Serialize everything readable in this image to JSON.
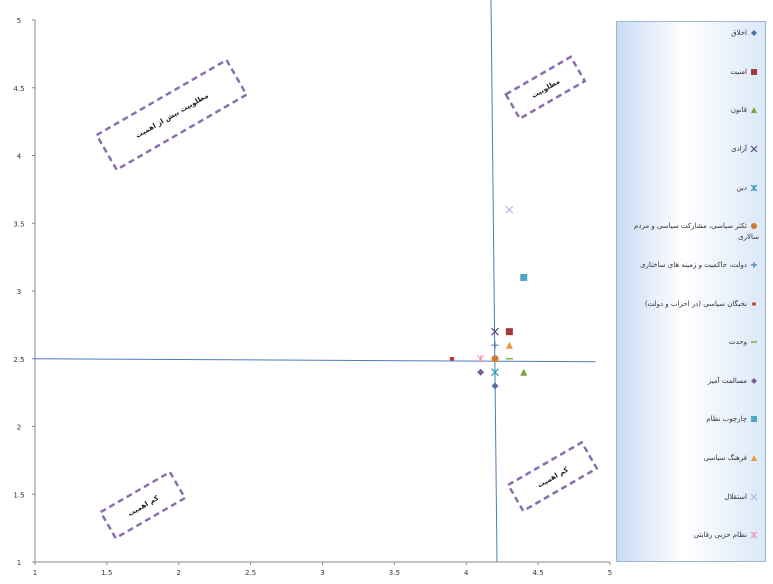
{
  "chart_data": {
    "type": "scatter",
    "xlim": [
      1,
      5
    ],
    "ylim": [
      1,
      5
    ],
    "x_ticks": [
      "1",
      "1.5",
      "2",
      "2.5",
      "3",
      "3.5",
      "4",
      "4.5",
      "5"
    ],
    "y_ticks": [
      "1",
      "1.5",
      "2",
      "2.5",
      "3",
      "3.5",
      "4",
      "4.5",
      "5"
    ],
    "grid": false,
    "legend_position": "right",
    "reference_lines": {
      "x": 4.2,
      "y": 2.5,
      "color": "#4a7ebb"
    },
    "quadrant_labels": [
      {
        "text": "مطلوبیت بیش از اهمیت",
        "x": 1.95,
        "y": 4.3
      },
      {
        "text": "مطلوبیت",
        "x": 4.55,
        "y": 4.5
      },
      {
        "text": "کم اهمیت",
        "x": 1.75,
        "y": 1.42
      },
      {
        "text": "کم اهمیت",
        "x": 4.6,
        "y": 1.63
      }
    ],
    "series": [
      {
        "name": "اخلاق",
        "marker": "diamond",
        "color": "#4f6fa8",
        "x": 4.2,
        "y": 2.3
      },
      {
        "name": "امنیت",
        "marker": "square",
        "color": "#a33a3a",
        "x": 4.3,
        "y": 2.7
      },
      {
        "name": "قانون",
        "marker": "triangle",
        "color": "#7f9f3f",
        "x": 4.4,
        "y": 2.4
      },
      {
        "name": "آزادی",
        "marker": "x",
        "color": "#5a4a88",
        "x": 4.2,
        "y": 2.7
      },
      {
        "name": "دین",
        "marker": "star",
        "color": "#3a9ab8",
        "x": 4.2,
        "y": 2.4
      },
      {
        "name": "تکثر سیاسی، مشارکت سیاسی و مردم سالاری",
        "marker": "circle",
        "color": "#d07a30",
        "x": 4.2,
        "y": 2.5
      },
      {
        "name": "دولت، حاکمیت و زمینه های ساختاری",
        "marker": "plus",
        "color": "#4a7ebb",
        "x": 4.2,
        "y": 2.6
      },
      {
        "name": "نخبگان سیاسی (در احزاب و دولت)",
        "marker": "dash",
        "color": "#c0392b",
        "x": 3.9,
        "y": 2.5
      },
      {
        "name": "وحدت",
        "marker": "line",
        "color": "#8ab04a",
        "x": 4.3,
        "y": 2.5
      },
      {
        "name": "مسالمت آمیز",
        "marker": "diamond",
        "color": "#7a5aa0",
        "x": 4.1,
        "y": 2.4
      },
      {
        "name": "چارچوب نظام",
        "marker": "square",
        "color": "#4aa8c8",
        "x": 4.4,
        "y": 3.1
      },
      {
        "name": "فرهنگ سیاسی",
        "marker": "triangle",
        "color": "#f0963c",
        "x": 4.3,
        "y": 2.6
      },
      {
        "name": "استقلال",
        "marker": "x",
        "color": "#b0b8e0",
        "x": 4.3,
        "y": 3.6
      },
      {
        "name": "نظام حزبی رقابتی",
        "marker": "star",
        "color": "#e8a0b8",
        "x": 4.1,
        "y": 2.5
      }
    ]
  }
}
